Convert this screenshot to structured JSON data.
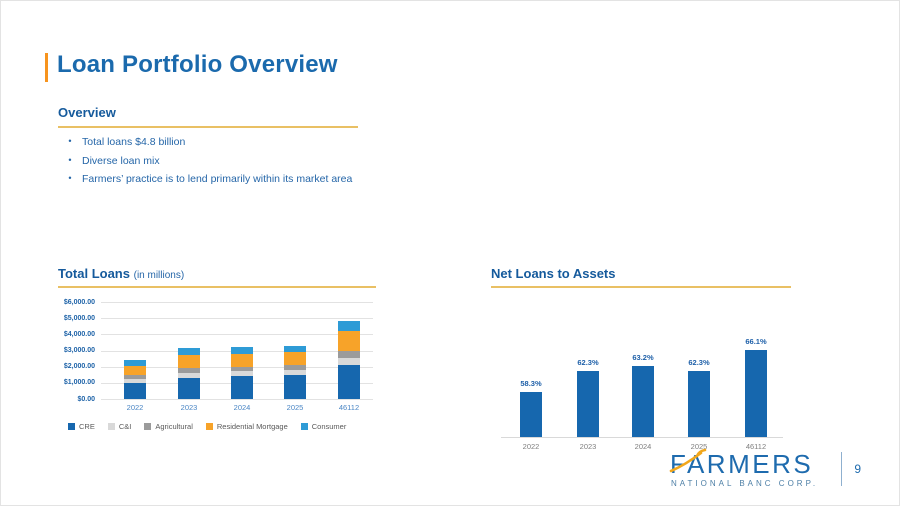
{
  "slide": {
    "title": "Loan Portfolio Overview",
    "page_number": "9"
  },
  "overview": {
    "heading": "Overview",
    "bullets": [
      "Total loans $4.8 billion",
      "Diverse loan mix",
      "Farmers’ practice is to lend primarily within its market area"
    ]
  },
  "chart_data": [
    {
      "type": "bar",
      "subtype": "stacked",
      "title": "Total Loans",
      "subtitle": "(in millions)",
      "categories": [
        "2022",
        "2023",
        "2024",
        "2025",
        "46112"
      ],
      "series": [
        {
          "name": "CRE",
          "color": "#1667AE",
          "values": [
            1000,
            1330,
            1420,
            1500,
            2100
          ]
        },
        {
          "name": "C&I",
          "color": "#D9D9D9",
          "values": [
            250,
            300,
            290,
            290,
            460
          ]
        },
        {
          "name": "Agricultural",
          "color": "#9B9B9B",
          "values": [
            250,
            290,
            290,
            290,
            420
          ]
        },
        {
          "name": "Residential Mortgage",
          "color": "#F7A329",
          "values": [
            520,
            830,
            790,
            800,
            1250
          ]
        },
        {
          "name": "Consumer",
          "color": "#2E9BD6",
          "values": [
            380,
            420,
            420,
            410,
            570
          ]
        }
      ],
      "ylim": [
        0,
        6000
      ],
      "ytick_step": 1000,
      "ytick_labels": [
        "$0.00",
        "$1,000.00",
        "$2,000.00",
        "$3,000.00",
        "$4,000.00",
        "$5,000.00",
        "$6,000.00"
      ],
      "grid": true,
      "legend_position": "bottom"
    },
    {
      "type": "bar",
      "title": "Net Loans to Assets",
      "categories": [
        "2022",
        "2023",
        "2024",
        "2025",
        "46112"
      ],
      "values": [
        58.3,
        62.3,
        63.2,
        62.3,
        66.1
      ],
      "data_labels": [
        "58.3%",
        "62.3%",
        "63.2%",
        "62.3%",
        "66.1%"
      ],
      "ylim": [
        50,
        70
      ],
      "bar_color": "#1667AE",
      "grid": false
    }
  ],
  "footer": {
    "logo_line1": "FARMERS",
    "logo_line2": "NATIONAL BANC CORP.",
    "page_label": "9"
  },
  "colors": {
    "accent_orange": "#F7941E",
    "gold_underline": "#E9C064",
    "title_blue": "#1B6AAD",
    "heading_blue": "#155A9C",
    "bullet_blue": "#2566A8",
    "bar_blue": "#1667AE",
    "logo_blue": "#1E6BAE"
  }
}
